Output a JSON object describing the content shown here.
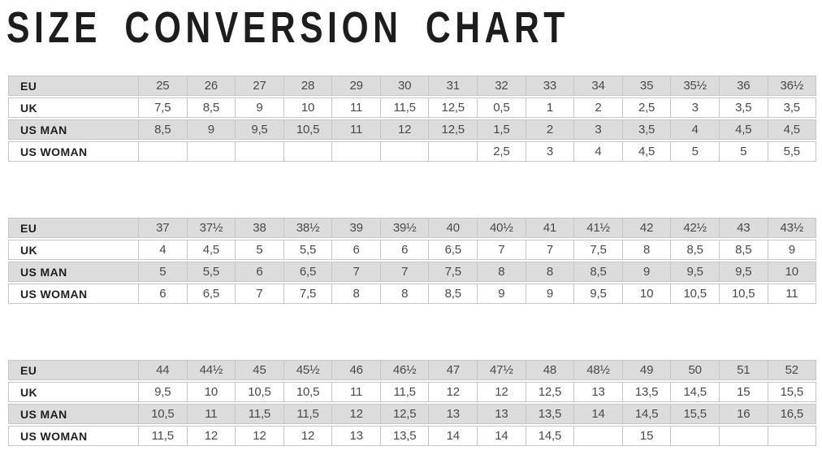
{
  "title": "SIZE CONVERSION CHART",
  "colors": {
    "row_shaded": "#dcdcdc",
    "row_plain": "#ffffff",
    "border": "#c6c6c6",
    "label_text": "#1f1f22",
    "value_text": "#4a4a4a",
    "title_text": "#1d1d20"
  },
  "row_labels": [
    "EU",
    "UK",
    "US MAN",
    "US WOMAN"
  ],
  "tables": [
    {
      "name": "sizes-eu-25-to-36half",
      "rows": [
        {
          "label": "EU",
          "cells": [
            "25",
            "26",
            "27",
            "28",
            "29",
            "30",
            "31",
            "32",
            "33",
            "34",
            "35",
            "35½",
            "36",
            "36½"
          ]
        },
        {
          "label": "UK",
          "cells": [
            "7,5",
            "8,5",
            "9",
            "10",
            "11",
            "11,5",
            "12,5",
            "0,5",
            "1",
            "2",
            "2,5",
            "3",
            "3,5",
            "3,5"
          ]
        },
        {
          "label": "US MAN",
          "cells": [
            "8,5",
            "9",
            "9,5",
            "10,5",
            "11",
            "12",
            "12,5",
            "1,5",
            "2",
            "3",
            "3,5",
            "4",
            "4,5",
            "4,5"
          ]
        },
        {
          "label": "US WOMAN",
          "cells": [
            "",
            "",
            "",
            "",
            "",
            "",
            "",
            "2,5",
            "3",
            "4",
            "4,5",
            "5",
            "5",
            "5,5"
          ]
        }
      ]
    },
    {
      "name": "sizes-eu-37-to-43half",
      "rows": [
        {
          "label": "EU",
          "cells": [
            "37",
            "37½",
            "38",
            "38½",
            "39",
            "39½",
            "40",
            "40½",
            "41",
            "41½",
            "42",
            "42½",
            "43",
            "43½"
          ]
        },
        {
          "label": "UK",
          "cells": [
            "4",
            "4,5",
            "5",
            "5,5",
            "6",
            "6",
            "6,5",
            "7",
            "7",
            "7,5",
            "8",
            "8,5",
            "8,5",
            "9"
          ]
        },
        {
          "label": "US MAN",
          "cells": [
            "5",
            "5,5",
            "6",
            "6,5",
            "7",
            "7",
            "7,5",
            "8",
            "8",
            "8,5",
            "9",
            "9,5",
            "9,5",
            "10"
          ]
        },
        {
          "label": "US WOMAN",
          "cells": [
            "6",
            "6,5",
            "7",
            "7,5",
            "8",
            "8",
            "8,5",
            "9",
            "9",
            "9,5",
            "10",
            "10,5",
            "10,5",
            "11"
          ]
        }
      ]
    },
    {
      "name": "sizes-eu-44-to-52",
      "rows": [
        {
          "label": "EU",
          "cells": [
            "44",
            "44½",
            "45",
            "45½",
            "46",
            "46½",
            "47",
            "47½",
            "48",
            "48½",
            "49",
            "50",
            "51",
            "52"
          ]
        },
        {
          "label": "UK",
          "cells": [
            "9,5",
            "10",
            "10,5",
            "10,5",
            "11",
            "11,5",
            "12",
            "12",
            "12,5",
            "13",
            "13,5",
            "14,5",
            "15",
            "15,5"
          ]
        },
        {
          "label": "US MAN",
          "cells": [
            "10,5",
            "11",
            "11,5",
            "11,5",
            "12",
            "12,5",
            "13",
            "13",
            "13,5",
            "14",
            "14,5",
            "15,5",
            "16",
            "16,5"
          ]
        },
        {
          "label": "US WOMAN",
          "cells": [
            "11,5",
            "12",
            "12",
            "12",
            "13",
            "13,5",
            "14",
            "14",
            "14,5",
            "",
            "15",
            "",
            "",
            ""
          ]
        }
      ]
    }
  ]
}
